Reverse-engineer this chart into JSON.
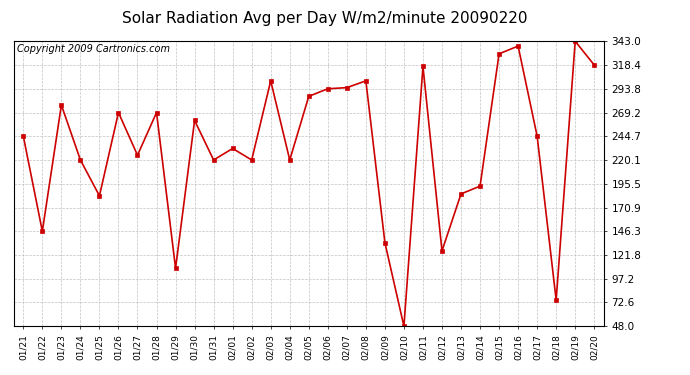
{
  "title": "Solar Radiation Avg per Day W/m2/minute 20090220",
  "copyright": "Copyright 2009 Cartronics.com",
  "dates": [
    "01/21",
    "01/22",
    "01/23",
    "01/24",
    "01/25",
    "01/26",
    "01/27",
    "01/28",
    "01/29",
    "01/30",
    "01/31",
    "02/01",
    "02/02",
    "02/03",
    "02/04",
    "02/05",
    "02/06",
    "02/07",
    "02/08",
    "02/09",
    "02/10",
    "02/11",
    "02/12",
    "02/13",
    "02/14",
    "02/15",
    "02/16",
    "02/17",
    "02/18",
    "02/19",
    "02/20"
  ],
  "values": [
    244.7,
    146.3,
    277.0,
    220.1,
    183.0,
    269.2,
    225.0,
    269.2,
    108.0,
    261.0,
    220.1,
    232.0,
    220.1,
    302.0,
    220.1,
    286.0,
    293.8,
    295.0,
    302.0,
    134.5,
    48.0,
    317.0,
    126.0,
    185.0,
    193.0,
    330.0,
    338.0,
    244.7,
    75.0,
    343.0,
    318.4
  ],
  "ylim_min": 48.0,
  "ylim_max": 343.0,
  "yticks": [
    48.0,
    72.6,
    97.2,
    121.8,
    146.3,
    170.9,
    195.5,
    220.1,
    244.7,
    269.2,
    293.8,
    318.4,
    343.0
  ],
  "line_color": "#cc0000",
  "marker_color": "#cc0000",
  "bg_color": "#ffffff",
  "grid_color": "#bbbbbb",
  "title_fontsize": 11,
  "copyright_fontsize": 7
}
